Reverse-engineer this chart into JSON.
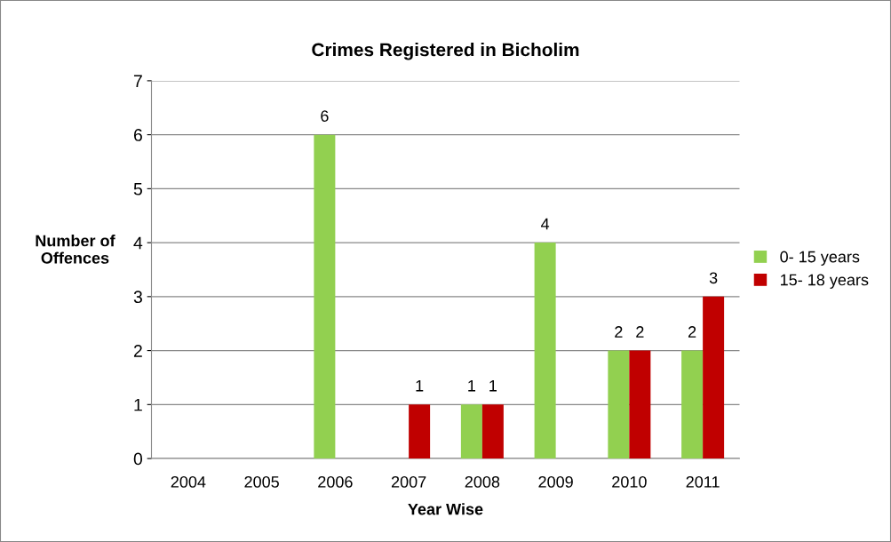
{
  "chart_data": {
    "type": "bar",
    "title": "Crimes Registered in Bicholim",
    "xlabel": "Year Wise",
    "ylabel": "Number of\nOffences",
    "categories": [
      "2004",
      "2005",
      "2006",
      "2007",
      "2008",
      "2009",
      "2010",
      "2011"
    ],
    "series": [
      {
        "name": "0- 15 years",
        "color": "#92d050",
        "values": [
          null,
          null,
          6,
          null,
          1,
          4,
          2,
          2
        ]
      },
      {
        "name": "15- 18 years",
        "color": "#c00000",
        "values": [
          null,
          null,
          null,
          1,
          1,
          null,
          2,
          3
        ]
      }
    ],
    "ylim": [
      0,
      7
    ],
    "yticks": [
      0,
      1,
      2,
      3,
      4,
      5,
      6,
      7
    ],
    "grid": "y",
    "legend": "right",
    "data_labels": true
  }
}
